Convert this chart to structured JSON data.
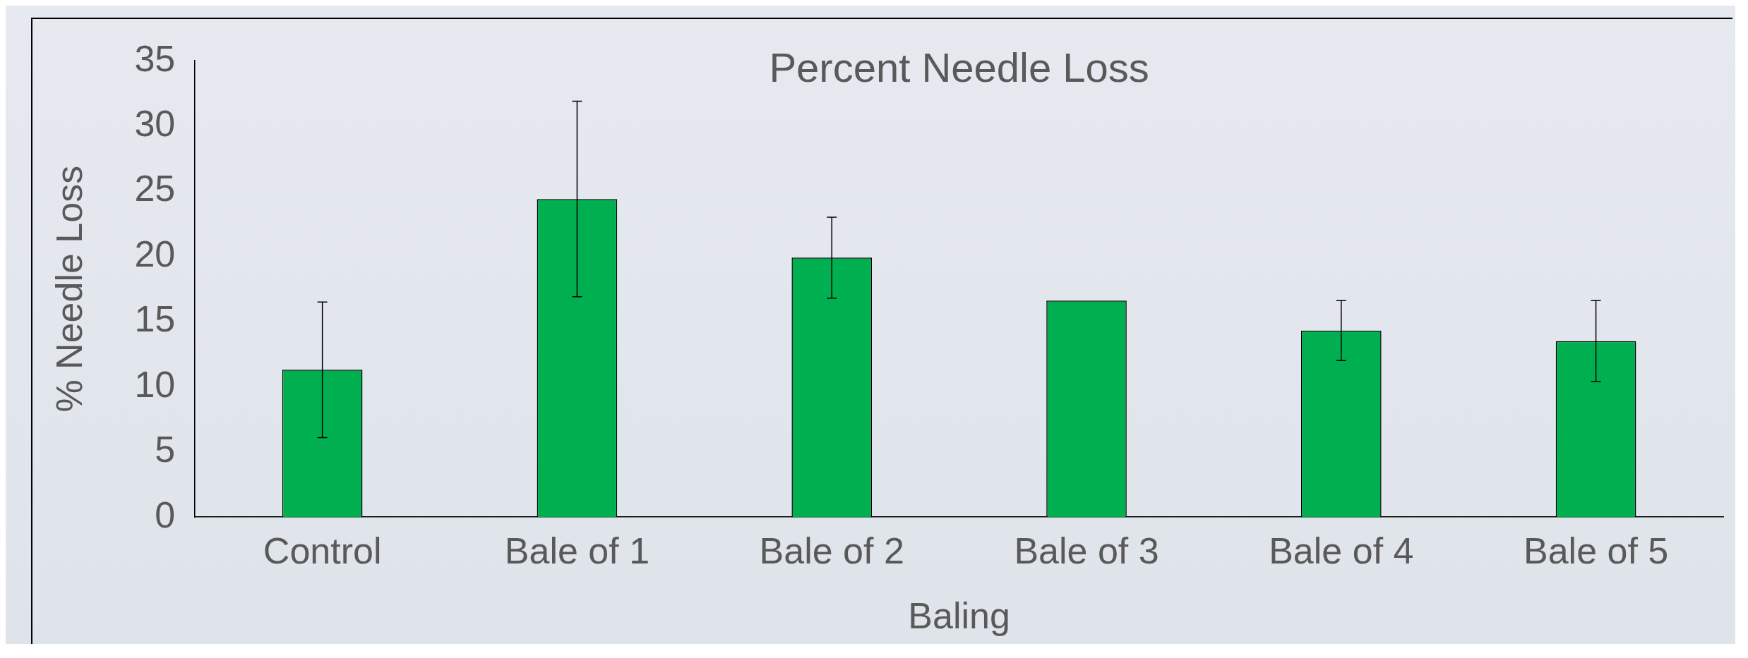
{
  "chart_data": {
    "type": "bar",
    "title": "Percent Needle Loss",
    "xlabel": "Baling",
    "ylabel": "% Needle Loss",
    "categories": [
      "Control",
      "Bale of 1",
      "Bale of 2",
      "Bale of 3",
      "Bale of 4",
      "Bale of 5"
    ],
    "values": [
      11.3,
      24.4,
      19.9,
      16.6,
      14.3,
      13.5
    ],
    "errors": [
      5.2,
      7.5,
      3.1,
      null,
      2.3,
      3.1
    ],
    "color": "#00b050",
    "ylim": [
      0,
      35
    ],
    "yticks": [
      0,
      5,
      10,
      15,
      20,
      25,
      30,
      35
    ],
    "grid": false,
    "legend": false
  }
}
